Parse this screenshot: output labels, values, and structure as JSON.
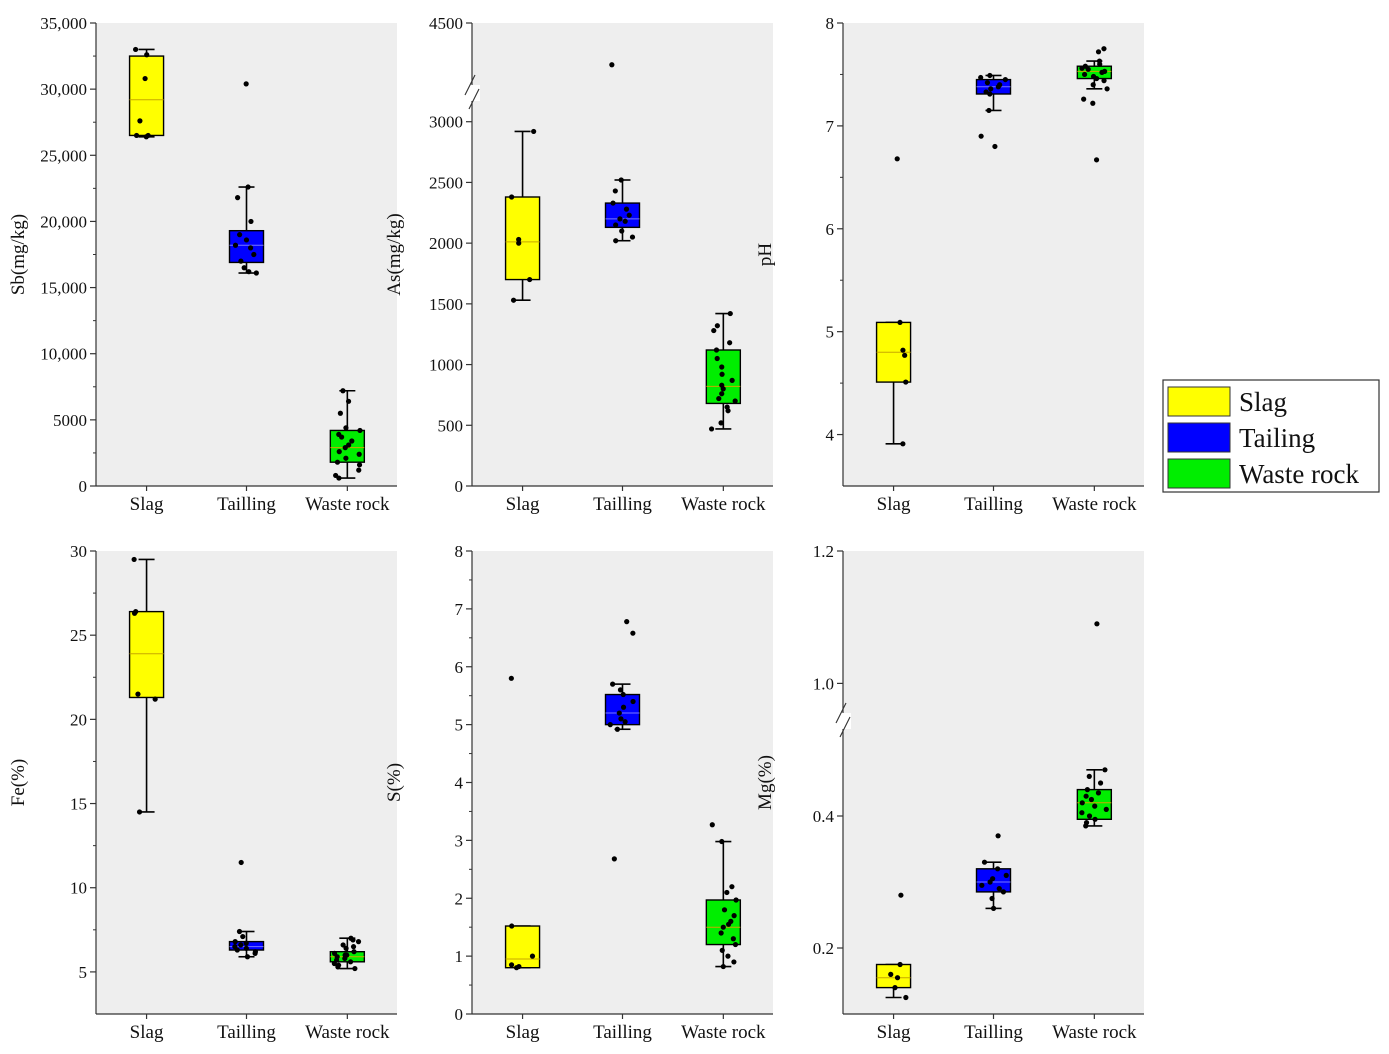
{
  "legend": [
    {
      "label": "Slag",
      "color": "#ffff00"
    },
    {
      "label": "Tailing",
      "color": "#0000ff"
    },
    {
      "label": "Waste rock",
      "color": "#00ee00"
    }
  ],
  "chart_data": [
    {
      "type": "box",
      "ylabel": "Sb(mg/kg)",
      "categories": [
        "Slag",
        "Tailling",
        "Waste rock"
      ],
      "ylim": [
        0,
        35000
      ],
      "yticks": [
        0,
        5000,
        10000,
        15000,
        20000,
        25000,
        30000,
        35000
      ],
      "ytick_labels": [
        "0",
        "5000",
        "10,000",
        "15,000",
        "20,000",
        "25,000",
        "30,000",
        "35,000"
      ],
      "series": [
        {
          "name": "Slag",
          "q1": 26500,
          "median": 29200,
          "q3": 32500,
          "whisker_low": 26400,
          "whisker_high": 33000,
          "points": [
            26400,
            26500,
            26500,
            27600,
            30800,
            32600,
            33000
          ]
        },
        {
          "name": "Tailing",
          "q1": 16900,
          "median": 18200,
          "q3": 19300,
          "whisker_low": 16100,
          "whisker_high": 22600,
          "points": [
            16100,
            16200,
            16500,
            17000,
            17500,
            18000,
            18200,
            18600,
            19000,
            20000,
            21800,
            22600,
            30400
          ]
        },
        {
          "name": "Waste rock",
          "q1": 1800,
          "median": 2900,
          "q3": 4200,
          "whisker_low": 600,
          "whisker_high": 7200,
          "points": [
            600,
            800,
            1200,
            1600,
            1800,
            2100,
            2400,
            2600,
            2900,
            3100,
            3400,
            3700,
            3900,
            4200,
            4400,
            5500,
            6400,
            7200
          ]
        }
      ]
    },
    {
      "type": "box",
      "ylabel": "As(mg/kg)",
      "categories": [
        "Slag",
        "Tailling",
        "Waste rock"
      ],
      "ylim": [
        0,
        4500
      ],
      "axis_break": [
        3150,
        4500
      ],
      "yticks": [
        0,
        500,
        1000,
        1500,
        2000,
        2500,
        3000,
        4500
      ],
      "ytick_labels": [
        "0",
        "500",
        "1000",
        "1500",
        "2000",
        "2500",
        "3000",
        "4500"
      ],
      "series": [
        {
          "name": "Slag",
          "q1": 1700,
          "median": 2010,
          "q3": 2380,
          "whisker_low": 1530,
          "whisker_high": 2920,
          "points": [
            1530,
            1700,
            2000,
            2030,
            2380,
            2920
          ]
        },
        {
          "name": "Tailing",
          "q1": 2130,
          "median": 2200,
          "q3": 2330,
          "whisker_low": 2020,
          "whisker_high": 2520,
          "points": [
            2020,
            2050,
            2100,
            2150,
            2180,
            2200,
            2230,
            2280,
            2330,
            2430,
            2520,
            3800
          ]
        },
        {
          "name": "Waste rock",
          "q1": 680,
          "median": 820,
          "q3": 1120,
          "whisker_low": 470,
          "whisker_high": 1420,
          "points": [
            470,
            520,
            620,
            650,
            700,
            720,
            760,
            800,
            830,
            870,
            920,
            980,
            1050,
            1120,
            1180,
            1280,
            1320,
            1420
          ]
        }
      ]
    },
    {
      "type": "box",
      "ylabel": "pH",
      "categories": [
        "Slag",
        "Tailling",
        "Waste rock"
      ],
      "ylim": [
        3.5,
        8
      ],
      "yticks": [
        4,
        5,
        6,
        7,
        8
      ],
      "ytick_labels": [
        "4",
        "5",
        "6",
        "7",
        "8"
      ],
      "series": [
        {
          "name": "Slag",
          "q1": 4.51,
          "median": 4.8,
          "q3": 5.09,
          "whisker_low": 3.91,
          "whisker_high": 5.09,
          "points": [
            3.91,
            4.51,
            4.77,
            4.82,
            5.09,
            6.68
          ]
        },
        {
          "name": "Tailing",
          "q1": 7.31,
          "median": 7.38,
          "q3": 7.45,
          "whisker_low": 7.15,
          "whisker_high": 7.49,
          "points": [
            6.8,
            6.9,
            7.15,
            7.31,
            7.33,
            7.36,
            7.38,
            7.4,
            7.42,
            7.45,
            7.47,
            7.49
          ]
        },
        {
          "name": "Waste rock",
          "q1": 7.46,
          "median": 7.53,
          "q3": 7.58,
          "whisker_low": 7.36,
          "whisker_high": 7.63,
          "points": [
            6.67,
            7.22,
            7.26,
            7.36,
            7.4,
            7.44,
            7.46,
            7.48,
            7.5,
            7.52,
            7.53,
            7.55,
            7.56,
            7.58,
            7.6,
            7.63,
            7.72,
            7.75
          ]
        }
      ]
    },
    {
      "type": "box",
      "ylabel": "Fe(%)",
      "categories": [
        "Slag",
        "Tailling",
        "Waste rock"
      ],
      "ylim": [
        2.5,
        30
      ],
      "yticks": [
        5,
        10,
        15,
        20,
        25,
        30
      ],
      "ytick_labels": [
        "5",
        "10",
        "15",
        "20",
        "25",
        "30"
      ],
      "series": [
        {
          "name": "Slag",
          "q1": 21.3,
          "median": 23.9,
          "q3": 26.4,
          "whisker_low": 14.5,
          "whisker_high": 29.5,
          "points": [
            14.5,
            21.2,
            21.5,
            26.3,
            26.4,
            29.5
          ]
        },
        {
          "name": "Tailing",
          "q1": 6.3,
          "median": 6.5,
          "q3": 6.8,
          "whisker_low": 5.9,
          "whisker_high": 7.4,
          "points": [
            5.9,
            6.1,
            6.2,
            6.3,
            6.4,
            6.5,
            6.6,
            6.7,
            6.8,
            7.1,
            7.4,
            11.5
          ]
        },
        {
          "name": "Waste rock",
          "q1": 5.6,
          "median": 5.9,
          "q3": 6.2,
          "whisker_low": 5.2,
          "whisker_high": 7.0,
          "points": [
            5.2,
            5.3,
            5.4,
            5.5,
            5.6,
            5.7,
            5.8,
            5.9,
            6.0,
            6.0,
            6.1,
            6.2,
            6.4,
            6.5,
            6.6,
            6.8,
            6.9,
            7.0
          ]
        }
      ]
    },
    {
      "type": "box",
      "ylabel": "S(%)",
      "categories": [
        "Slag",
        "Tailling",
        "Waste rock"
      ],
      "ylim": [
        0,
        8
      ],
      "yticks": [
        0,
        1,
        2,
        3,
        4,
        5,
        6,
        7,
        8
      ],
      "ytick_labels": [
        "0",
        "1",
        "2",
        "3",
        "4",
        "5",
        "6",
        "7",
        "8"
      ],
      "series": [
        {
          "name": "Slag",
          "q1": 0.8,
          "median": 0.95,
          "q3": 1.52,
          "whisker_low": 0.8,
          "whisker_high": 1.52,
          "points": [
            0.8,
            0.82,
            0.85,
            1.0,
            1.52,
            5.8
          ]
        },
        {
          "name": "Tailing",
          "q1": 5.0,
          "median": 5.2,
          "q3": 5.52,
          "whisker_low": 4.92,
          "whisker_high": 5.7,
          "points": [
            2.68,
            4.92,
            5.0,
            5.05,
            5.1,
            5.2,
            5.3,
            5.4,
            5.52,
            5.6,
            5.7,
            6.58,
            6.78
          ]
        },
        {
          "name": "Waste rock",
          "q1": 1.2,
          "median": 1.5,
          "q3": 1.97,
          "whisker_low": 0.82,
          "whisker_high": 2.98,
          "points": [
            0.82,
            0.9,
            1.0,
            1.1,
            1.2,
            1.3,
            1.4,
            1.5,
            1.55,
            1.6,
            1.7,
            1.8,
            1.97,
            2.1,
            2.2,
            2.98,
            3.27
          ]
        }
      ]
    },
    {
      "type": "box",
      "ylabel": "Mg(%)",
      "categories": [
        "Slag",
        "Tailling",
        "Waste rock"
      ],
      "ylim": [
        0.1,
        1.2
      ],
      "axis_break": [
        0.5,
        0.95
      ],
      "yticks": [
        0.2,
        0.4,
        1.0,
        1.2
      ],
      "ytick_labels": [
        "0.2",
        "0.4",
        "1.0",
        "1.2"
      ],
      "series": [
        {
          "name": "Slag",
          "q1": 0.14,
          "median": 0.155,
          "q3": 0.175,
          "whisker_low": 0.125,
          "whisker_high": 0.175,
          "points": [
            0.125,
            0.14,
            0.155,
            0.16,
            0.175,
            0.28
          ]
        },
        {
          "name": "Tailing",
          "q1": 0.285,
          "median": 0.3,
          "q3": 0.32,
          "whisker_low": 0.26,
          "whisker_high": 0.33,
          "points": [
            0.26,
            0.275,
            0.285,
            0.29,
            0.295,
            0.3,
            0.305,
            0.31,
            0.32,
            0.33,
            0.37
          ]
        },
        {
          "name": "Waste rock",
          "q1": 0.395,
          "median": 0.42,
          "q3": 0.44,
          "whisker_low": 0.385,
          "whisker_high": 0.47,
          "points": [
            0.385,
            0.39,
            0.395,
            0.4,
            0.405,
            0.41,
            0.415,
            0.42,
            0.425,
            0.43,
            0.435,
            0.44,
            0.45,
            0.46,
            0.47,
            1.09
          ]
        }
      ]
    }
  ]
}
